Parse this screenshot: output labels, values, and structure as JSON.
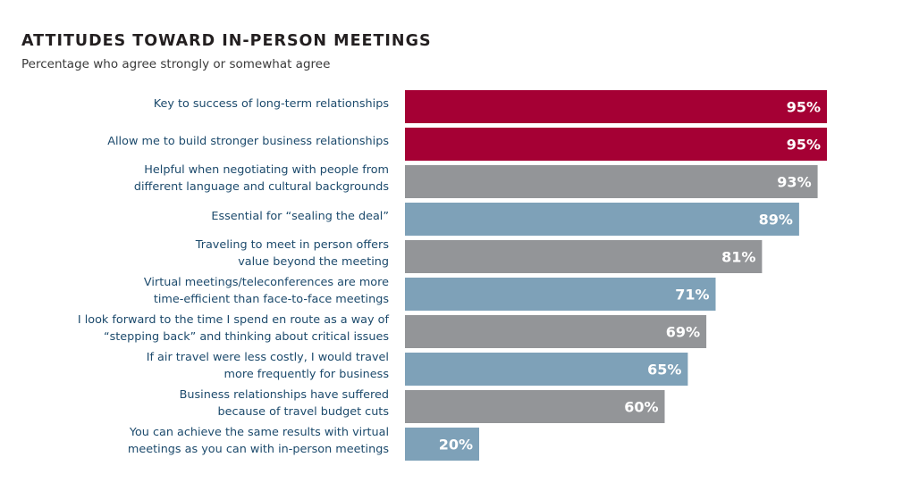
{
  "chart_data": {
    "type": "bar",
    "orientation": "horizontal",
    "title": "ATTITUDES TOWARD IN-PERSON MEETINGS",
    "subtitle": "Percentage who agree strongly or somewhat agree",
    "xlabel": "",
    "ylabel": "",
    "grid": false,
    "legend": "none",
    "categories": [
      [
        "Key to success of long-term relationships"
      ],
      [
        "Allow me to build stronger business relationships"
      ],
      [
        "Helpful when negotiating with people from",
        "different language and cultural backgrounds"
      ],
      [
        "Essential for “sealing the deal”"
      ],
      [
        "Traveling to meet in person offers",
        "value beyond the meeting"
      ],
      [
        "Virtual meetings/teleconferences are more",
        "time-efficient than face-to-face meetings"
      ],
      [
        "I look forward to the time I spend en route as a way of",
        "“stepping back” and thinking about critical issues"
      ],
      [
        "If air travel were less costly, I would travel",
        "more frequently for business"
      ],
      [
        "Business relationships have suffered",
        "because of travel budget cuts"
      ],
      [
        "You can achieve the same results with virtual",
        "meetings as you can with in-person meetings"
      ]
    ],
    "values": [
      95,
      95,
      93,
      89,
      81,
      71,
      69,
      65,
      60,
      20
    ],
    "value_labels": [
      "95%",
      "95%",
      "93%",
      "89%",
      "81%",
      "71%",
      "69%",
      "65%",
      "60%",
      "20%"
    ],
    "bar_colors": [
      "#a50034",
      "#a50034",
      "#939598",
      "#7ea1b8",
      "#939598",
      "#7ea1b8",
      "#939598",
      "#7ea1b8",
      "#939598",
      "#7ea1b8"
    ],
    "xlim": [
      0,
      100
    ]
  }
}
